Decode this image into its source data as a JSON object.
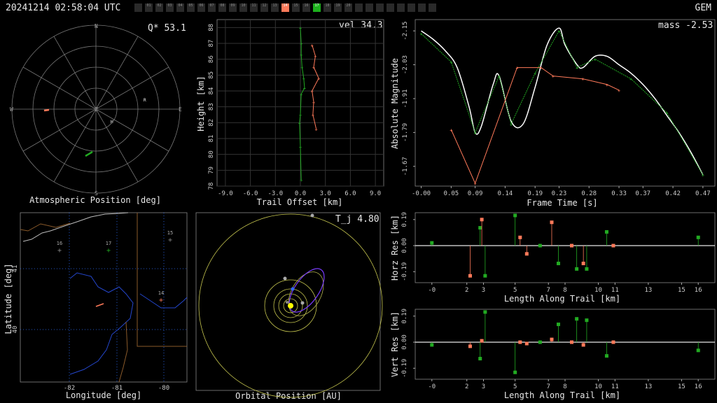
{
  "header": {
    "timestamp": "20241214 02:58:04 UTC",
    "network": "GEM"
  },
  "stations": [
    {
      "id": "",
      "state": "off"
    },
    {
      "id": "01",
      "state": "off"
    },
    {
      "id": "02",
      "state": "off"
    },
    {
      "id": "03",
      "state": "off"
    },
    {
      "id": "04",
      "state": "off"
    },
    {
      "id": "05",
      "state": "off"
    },
    {
      "id": "06",
      "state": "off"
    },
    {
      "id": "07",
      "state": "off"
    },
    {
      "id": "08",
      "state": "off"
    },
    {
      "id": "09",
      "state": "off"
    },
    {
      "id": "10",
      "state": "off"
    },
    {
      "id": "11",
      "state": "off"
    },
    {
      "id": "12",
      "state": "off"
    },
    {
      "id": "13",
      "state": "off"
    },
    {
      "id": "14",
      "state": "orange"
    },
    {
      "id": "15",
      "state": "off"
    },
    {
      "id": "16",
      "state": "off"
    },
    {
      "id": "17",
      "state": "green"
    },
    {
      "id": "18",
      "state": "off"
    },
    {
      "id": "19",
      "state": "off"
    },
    {
      "id": "20",
      "state": "off"
    },
    {
      "id": "",
      "state": "off"
    },
    {
      "id": "",
      "state": "off"
    },
    {
      "id": "",
      "state": "off"
    },
    {
      "id": "",
      "state": "off"
    },
    {
      "id": "",
      "state": "off"
    },
    {
      "id": "",
      "state": "off"
    },
    {
      "id": "",
      "state": "off"
    },
    {
      "id": "",
      "state": "off"
    }
  ],
  "colors": {
    "orange": "#ff7a5a",
    "green": "#22aa22",
    "white": "#ffffff",
    "grid": "#555555",
    "yellow": "#c8c850",
    "purple": "#7a3cff",
    "blue": "#3366ff"
  },
  "panels": {
    "polar": {
      "xlabel": "Atmospheric Position [deg]",
      "annotation": "Q* 53.1",
      "compass": {
        "N": "N",
        "S": "S",
        "E": "E",
        "W": "W",
        "Z": "Z"
      },
      "markers": {
        "radiant": "R",
        "h": "H"
      }
    },
    "height": {
      "xlabel": "Trail Offset [km]",
      "ylabel": "Height [km]",
      "annotation": "vel 34.3",
      "xticks": [
        "-9.0",
        "-6.0",
        "-3.0",
        "0.0",
        "3.0",
        "6.0",
        "9.0"
      ],
      "yticks": [
        "78",
        "79",
        "80",
        "81",
        "82",
        "83",
        "84",
        "85",
        "86",
        "87",
        "88"
      ]
    },
    "lightcurve": {
      "xlabel": "Frame Time [s]",
      "ylabel": "Absolute Magnitude",
      "annotation": "mass -2.53",
      "xticks": [
        "-0.00",
        "0.05",
        "0.09",
        "0.14",
        "0.19",
        "0.23",
        "0.28",
        "0.33",
        "0.37",
        "0.42",
        "0.47"
      ],
      "yticks": [
        "-2.15",
        "-2.03",
        "-1.91",
        "-1.79",
        "-1.67"
      ]
    },
    "map": {
      "xlabel": "Longitude [deg]",
      "ylabel": "Latitude [deg]",
      "xticks": [
        "-82",
        "-81",
        "-80"
      ],
      "yticks": [
        "41",
        "40"
      ],
      "stations": [
        {
          "label": "16"
        },
        {
          "label": "17"
        },
        {
          "label": "15"
        },
        {
          "label": "14"
        }
      ]
    },
    "orbit": {
      "xlabel": "Orbital Position [AU]",
      "annotation": "T_j 4.80"
    },
    "horz": {
      "xlabel": "Length Along Trail [km]",
      "ylabel": "Horz Res [km]",
      "xticks": [
        "-0",
        "2",
        "3",
        "5",
        "7",
        "8",
        "10",
        "11",
        "13",
        "15",
        "16"
      ],
      "yticks": [
        "0.19",
        "0.00",
        "-0.19"
      ]
    },
    "vert": {
      "xlabel": "Length Along Trail [km]",
      "ylabel": "Vert Res [km]",
      "xticks": [
        "-0",
        "2",
        "3",
        "5",
        "7",
        "8",
        "10",
        "11",
        "13",
        "15",
        "16"
      ],
      "yticks": [
        "0.19",
        "0.00",
        "-0.19"
      ]
    }
  },
  "chart_data": [
    {
      "type": "line",
      "title": "",
      "xlabel": "Trail Offset [km]",
      "ylabel": "Height [km]",
      "xlim": [
        -10,
        10
      ],
      "ylim": [
        78,
        88.5
      ],
      "series": [
        {
          "color": "green",
          "x": [
            0.0,
            0.1,
            0.1,
            0.2,
            0.4,
            0.5,
            0.1,
            0.0,
            -0.1,
            0.0,
            0.1
          ],
          "y": [
            88.0,
            87.0,
            86.3,
            85.5,
            84.8,
            84.2,
            83.8,
            82.5,
            82.0,
            80.5,
            78.4
          ]
        },
        {
          "color": "orange",
          "x": [
            1.4,
            1.8,
            1.6,
            2.2,
            1.4,
            1.6,
            1.5,
            1.9
          ],
          "y": [
            86.9,
            86.2,
            85.5,
            84.8,
            84.0,
            83.3,
            82.5,
            81.6
          ]
        }
      ]
    },
    {
      "type": "line",
      "title": "",
      "xlabel": "Frame Time [s]",
      "ylabel": "Absolute Magnitude",
      "xlim": [
        -0.01,
        0.49
      ],
      "ylim": [
        -1.6,
        -2.19
      ],
      "series": [
        {
          "color": "white",
          "x": [
            0.0,
            0.02,
            0.04,
            0.06,
            0.08,
            0.09,
            0.1,
            0.12,
            0.13,
            0.15,
            0.17,
            0.19,
            0.21,
            0.23,
            0.24,
            0.26,
            0.27,
            0.29,
            0.31,
            0.33,
            0.35,
            0.37,
            0.39,
            0.41,
            0.43,
            0.45,
            0.47
          ],
          "y": [
            -2.15,
            -2.12,
            -2.08,
            -2.02,
            -1.88,
            -1.79,
            -1.81,
            -1.96,
            -1.99,
            -1.83,
            -1.82,
            -1.95,
            -2.1,
            -2.16,
            -2.1,
            -2.03,
            -2.02,
            -2.06,
            -2.06,
            -2.03,
            -2.0,
            -1.96,
            -1.91,
            -1.85,
            -1.79,
            -1.72,
            -1.64
          ]
        },
        {
          "color": "green",
          "x": [
            0.0,
            0.05,
            0.09,
            0.13,
            0.15,
            0.19,
            0.23,
            0.26,
            0.29,
            0.35,
            0.41,
            0.47
          ],
          "y": [
            -2.14,
            -2.04,
            -1.79,
            -1.99,
            -1.82,
            -2.0,
            -2.15,
            -2.02,
            -2.05,
            -1.98,
            -1.86,
            -1.64
          ]
        },
        {
          "color": "orange",
          "x": [
            0.05,
            0.09,
            0.16,
            0.2,
            0.22,
            0.27,
            0.31,
            0.33
          ],
          "y": [
            -1.8,
            -1.61,
            -2.02,
            -2.02,
            -1.99,
            -1.98,
            -1.96,
            -1.94
          ]
        }
      ]
    },
    {
      "type": "scatter",
      "title": "",
      "xlabel": "Length Along Trail [km]",
      "ylabel": "Horz Res [km]",
      "xlim": [
        -1,
        17
      ],
      "ylim": [
        -0.27,
        0.24
      ],
      "series": [
        {
          "color": "green",
          "x": [
            0.0,
            2.9,
            3.2,
            5.0,
            6.5,
            7.6,
            8.7,
            9.3,
            10.5,
            16.0
          ],
          "y": [
            0.02,
            0.13,
            -0.22,
            0.22,
            0.0,
            -0.13,
            -0.17,
            -0.17,
            0.1,
            0.06
          ]
        },
        {
          "color": "orange",
          "x": [
            2.3,
            3.0,
            5.3,
            5.7,
            7.2,
            8.4,
            9.1,
            10.9
          ],
          "y": [
            -0.22,
            0.19,
            0.06,
            -0.06,
            0.17,
            0.0,
            -0.13,
            0.0
          ]
        }
      ]
    },
    {
      "type": "scatter",
      "title": "",
      "xlabel": "Length Along Trail [km]",
      "ylabel": "Vert Res [km]",
      "xlim": [
        -1,
        17
      ],
      "ylim": [
        -0.27,
        0.24
      ],
      "series": [
        {
          "color": "green",
          "x": [
            0.0,
            2.9,
            3.2,
            5.0,
            6.5,
            7.6,
            8.7,
            9.3,
            10.5,
            16.0
          ],
          "y": [
            -0.02,
            -0.12,
            0.22,
            -0.22,
            0.0,
            0.13,
            0.17,
            0.16,
            -0.1,
            -0.06
          ]
        },
        {
          "color": "orange",
          "x": [
            2.3,
            3.0,
            5.3,
            5.7,
            7.2,
            8.4,
            9.1,
            10.9
          ],
          "y": [
            -0.03,
            0.01,
            0.0,
            -0.01,
            0.02,
            0.0,
            -0.02,
            0.0
          ]
        }
      ]
    }
  ]
}
